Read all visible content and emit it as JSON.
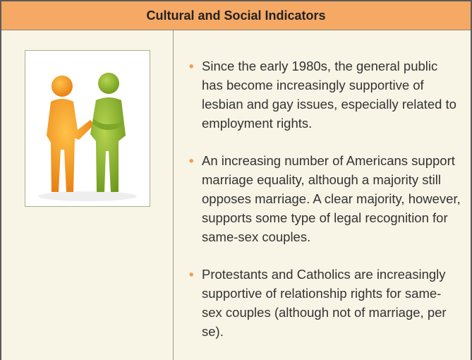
{
  "header": {
    "title": "Cultural and Social Indicators"
  },
  "bullets": [
    "Since the early 1980s, the general public has become increasingly supportive of lesbian and gay issues, especially related to employment rights.",
    "An increasing number of Americans support marriage equality, although a majority still opposes marriage. A clear majority, however, supports some type of legal recognition for same-sex couples.",
    "Protestants and Catholics are increasingly supportive of relationship rights for same-sex couples (although not of marriage, per se)."
  ]
}
